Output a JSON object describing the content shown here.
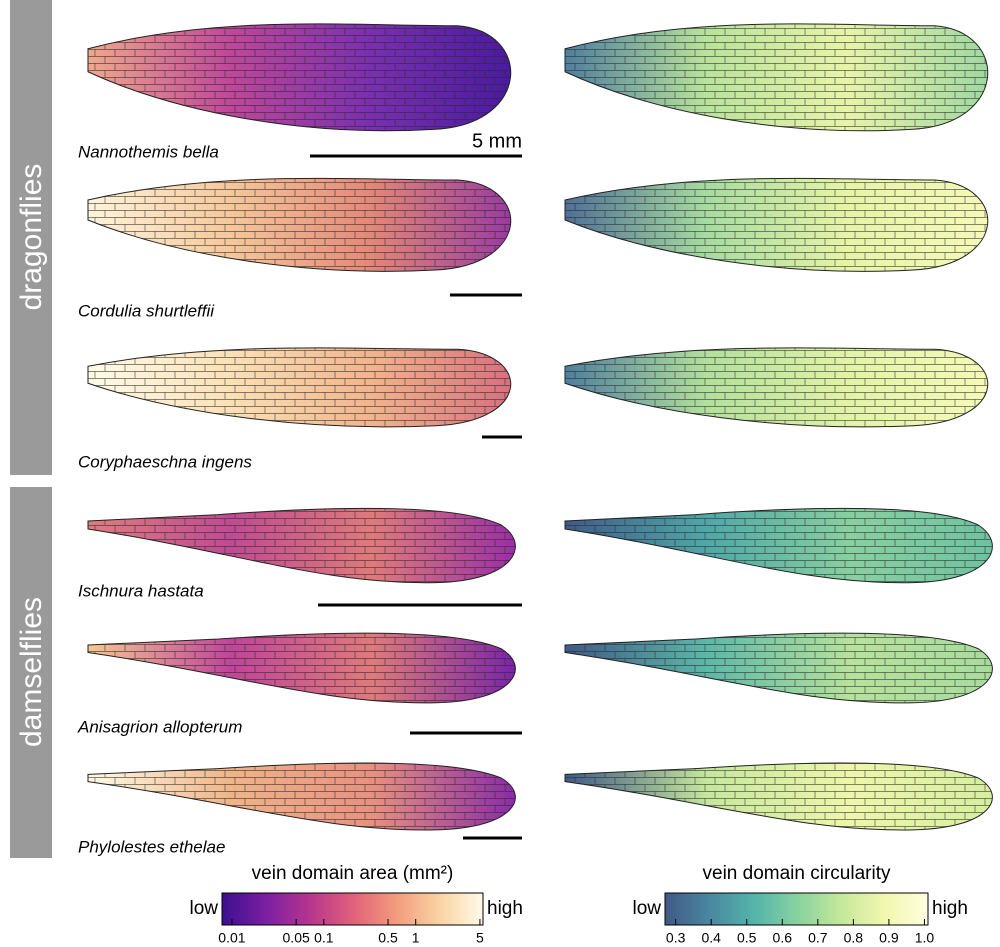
{
  "groups": [
    "dragonflies",
    "damselflies"
  ],
  "species": [
    "Nannothemis bella",
    "Cordulia shurtleffii",
    "Coryphaeschna ingens",
    "Ischnura hastata",
    "Anisagrion allopterum",
    "Phylolestes ethelae"
  ],
  "scale_label": "5 mm",
  "colorbars": [
    {
      "title": "vein domain area (mm²)",
      "low": "low",
      "high": "high",
      "log": true,
      "lim": [
        0.0078,
        5.4
      ],
      "ticks": [
        0.01,
        0.05,
        0.1,
        0.5,
        1,
        5
      ],
      "colors": [
        "#3b0f8f",
        "#7a1fa2",
        "#b6358f",
        "#e0607a",
        "#f39b7c",
        "#f9d3a3",
        "#fffbe8"
      ]
    },
    {
      "title": "vein domain circularity",
      "low": "low",
      "high": "high",
      "log": false,
      "lim": [
        0.27,
        1.01
      ],
      "ticks": [
        0.3,
        0.4,
        0.5,
        0.6,
        0.7,
        0.8,
        0.9,
        {
          "value": 1,
          "label": "1.0"
        }
      ],
      "colors": [
        "#405985",
        "#4a86a0",
        "#52b3aa",
        "#86d1a0",
        "#c3e89a",
        "#f1f7ae",
        "#fffee0"
      ]
    }
  ]
}
